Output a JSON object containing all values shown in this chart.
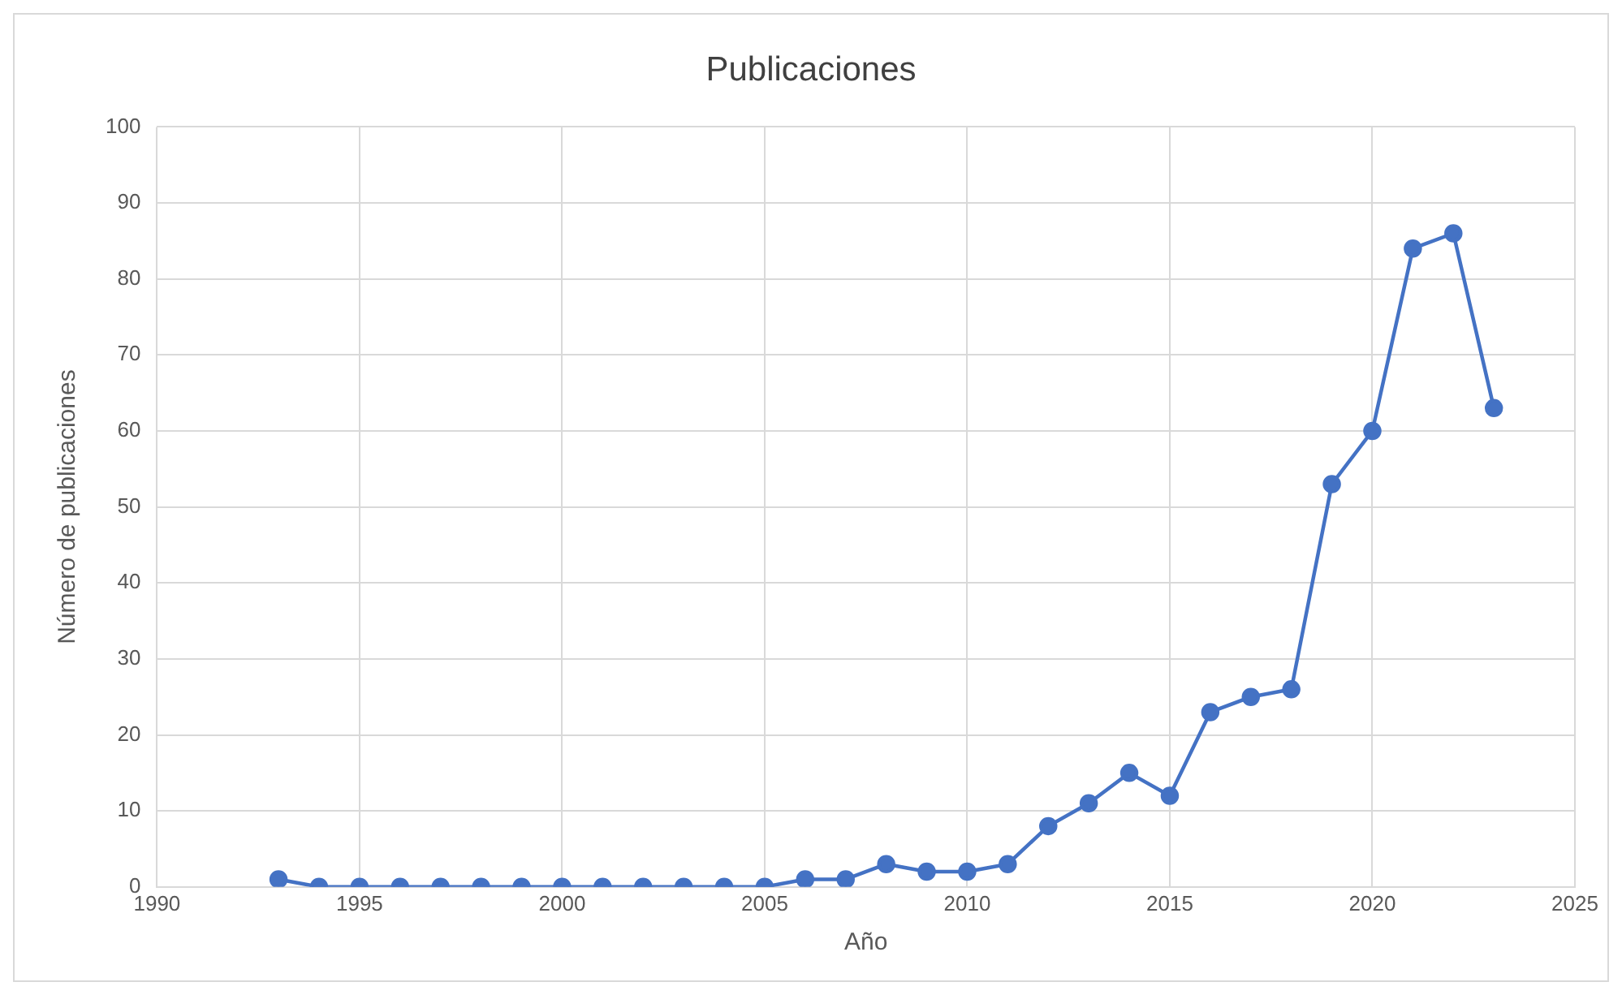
{
  "chart_data": {
    "type": "line",
    "title": "Publicaciones",
    "xlabel": "Año",
    "ylabel": "Número de publicaciones",
    "x": [
      1993,
      1994,
      1995,
      1996,
      1997,
      1998,
      1999,
      2000,
      2001,
      2002,
      2003,
      2004,
      2005,
      2006,
      2007,
      2008,
      2009,
      2010,
      2011,
      2012,
      2013,
      2014,
      2015,
      2016,
      2017,
      2018,
      2019,
      2020,
      2021,
      2022,
      2023
    ],
    "series": [
      {
        "color": "#4472c4",
        "values": [
          1,
          0,
          0,
          0,
          0,
          0,
          0,
          0,
          0,
          0,
          0,
          0,
          0,
          1,
          1,
          3,
          2,
          2,
          3,
          8,
          11,
          15,
          12,
          23,
          25,
          26,
          53,
          60,
          84,
          86,
          63
        ]
      }
    ],
    "xlim": [
      1990,
      2025
    ],
    "xticks": [
      1990,
      1995,
      2000,
      2005,
      2010,
      2015,
      2020,
      2025
    ],
    "ylim": [
      0,
      100
    ],
    "yticks": [
      0,
      10,
      20,
      30,
      40,
      50,
      60,
      70,
      80,
      90,
      100
    ],
    "grid": true,
    "legend": false,
    "marker": "circle",
    "line_style": "solid"
  }
}
